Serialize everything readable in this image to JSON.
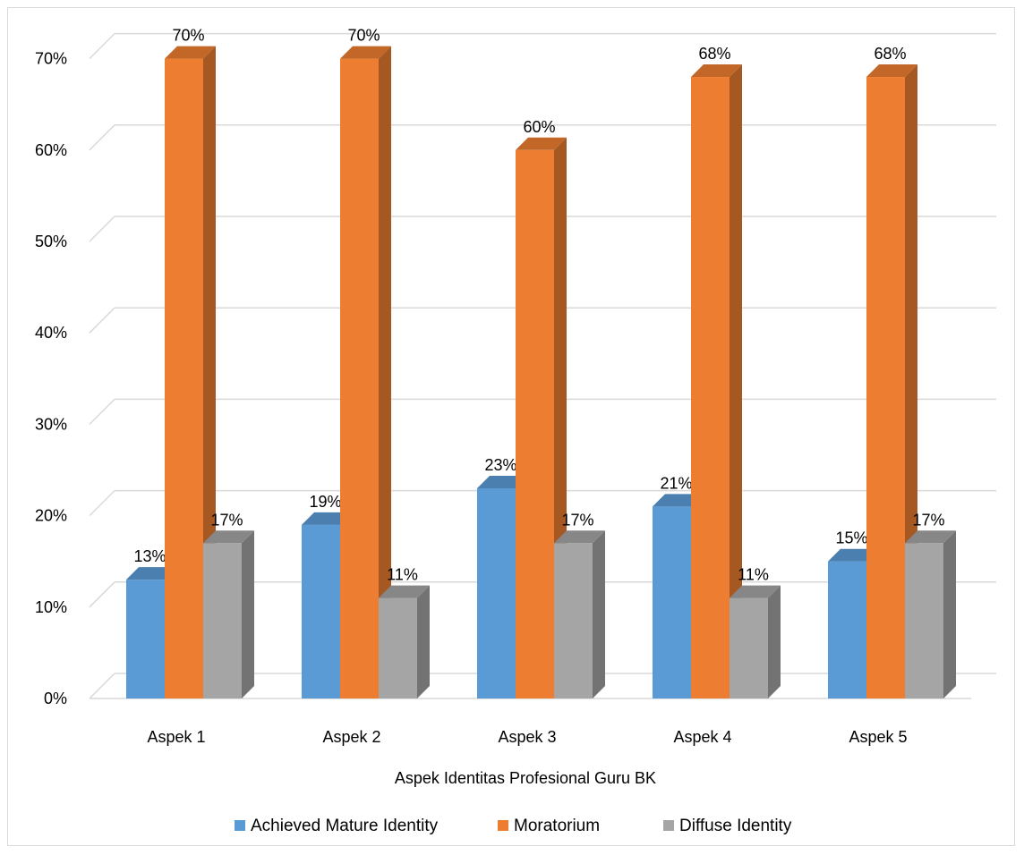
{
  "chart_data": {
    "type": "bar",
    "style": "3d-clustered-column",
    "title": "",
    "xlabel": "Aspek Identitas Profesional Guru BK",
    "ylabel": "",
    "categories": [
      "Aspek 1",
      "Aspek 2",
      "Aspek 3",
      "Aspek 4",
      "Aspek 5"
    ],
    "series": [
      {
        "name": "Achieved Mature Identity",
        "color": "#5b9bd5",
        "values": [
          0.13,
          0.19,
          0.23,
          0.21,
          0.15
        ],
        "labels": [
          "13%",
          "19%",
          "23%",
          "21%",
          "15%"
        ]
      },
      {
        "name": "Moratorium",
        "color": "#ed7d31",
        "values": [
          0.7,
          0.7,
          0.6,
          0.68,
          0.68
        ],
        "labels": [
          "70%",
          "70%",
          "60%",
          "68%",
          "68%"
        ]
      },
      {
        "name": "Diffuse Identity",
        "color": "#a5a5a5",
        "values": [
          0.17,
          0.11,
          0.17,
          0.11,
          0.17
        ],
        "labels": [
          "17%",
          "11%",
          "17%",
          "11%",
          "17%"
        ]
      }
    ],
    "ylim": [
      0,
      0.7
    ],
    "yticks": [
      "0%",
      "10%",
      "20%",
      "30%",
      "40%",
      "50%",
      "60%",
      "70%"
    ],
    "grid": true,
    "legend": "bottom"
  }
}
